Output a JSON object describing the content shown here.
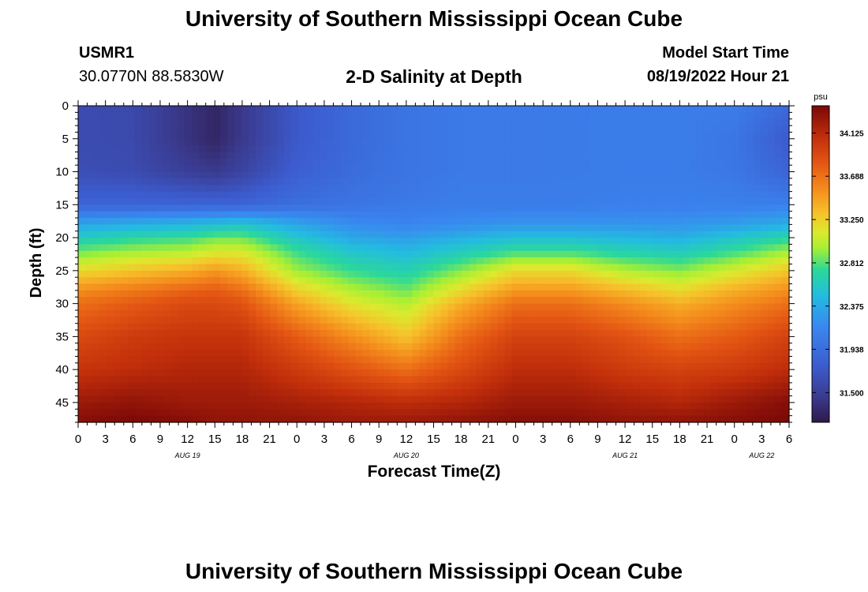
{
  "header": {
    "title": "University of Southern Mississippi Ocean Cube",
    "station_id": "USMR1",
    "station_coords": "30.0770N  88.5830W",
    "plot_title": "2-D Salinity at Depth",
    "start_label": "Model Start Time",
    "start_value": "08/19/2022 Hour 21"
  },
  "footer": {
    "title": "University of Southern Mississippi Ocean Cube"
  },
  "chart_data": {
    "type": "heatmap",
    "title": "2-D Salinity at Depth",
    "xlabel": "Forecast Time(Z)",
    "ylabel": "Depth (ft)",
    "x_range_hours": [
      0,
      78
    ],
    "y_range_ft": [
      0,
      48
    ],
    "x_ticks": [
      {
        "hour": 0,
        "label": "0"
      },
      {
        "hour": 3,
        "label": "3"
      },
      {
        "hour": 6,
        "label": "6"
      },
      {
        "hour": 9,
        "label": "9"
      },
      {
        "hour": 12,
        "label": "12"
      },
      {
        "hour": 15,
        "label": "15"
      },
      {
        "hour": 18,
        "label": "18"
      },
      {
        "hour": 21,
        "label": "21"
      },
      {
        "hour": 24,
        "label": "0"
      },
      {
        "hour": 27,
        "label": "3"
      },
      {
        "hour": 30,
        "label": "6"
      },
      {
        "hour": 33,
        "label": "9"
      },
      {
        "hour": 36,
        "label": "12"
      },
      {
        "hour": 39,
        "label": "15"
      },
      {
        "hour": 42,
        "label": "18"
      },
      {
        "hour": 45,
        "label": "21"
      },
      {
        "hour": 48,
        "label": "0"
      },
      {
        "hour": 51,
        "label": "3"
      },
      {
        "hour": 54,
        "label": "6"
      },
      {
        "hour": 57,
        "label": "9"
      },
      {
        "hour": 60,
        "label": "12"
      },
      {
        "hour": 63,
        "label": "15"
      },
      {
        "hour": 66,
        "label": "18"
      },
      {
        "hour": 69,
        "label": "21"
      },
      {
        "hour": 72,
        "label": "0"
      },
      {
        "hour": 75,
        "label": "3"
      },
      {
        "hour": 78,
        "label": "6"
      }
    ],
    "date_labels": [
      {
        "hour": 12,
        "label": "AUG 19"
      },
      {
        "hour": 36,
        "label": "AUG 20"
      },
      {
        "hour": 60,
        "label": "AUG 21"
      },
      {
        "hour": 75,
        "label": "AUG 22"
      }
    ],
    "y_ticks": [
      0,
      5,
      10,
      15,
      20,
      25,
      30,
      35,
      40,
      45
    ],
    "colorbar": {
      "unit": "psu",
      "min": 31.2,
      "max": 34.4,
      "ticks": [
        "34.125",
        "33.688",
        "33.250",
        "32.812",
        "32.375",
        "31.938",
        "31.500"
      ]
    },
    "depth_ft": [
      0,
      5,
      10,
      15,
      18,
      20,
      22,
      25,
      28,
      30,
      35,
      40,
      45,
      48
    ],
    "time_hours": [
      0,
      6,
      12,
      15,
      18,
      24,
      30,
      36,
      42,
      48,
      54,
      60,
      66,
      72,
      78
    ],
    "salinity_psu": [
      [
        31.62,
        31.6,
        31.4,
        31.3,
        31.45,
        31.75,
        31.9,
        32.0,
        32.05,
        32.05,
        32.06,
        32.07,
        32.07,
        32.07,
        31.9
      ],
      [
        31.62,
        31.6,
        31.4,
        31.3,
        31.45,
        31.75,
        31.9,
        32.0,
        32.05,
        32.05,
        32.06,
        32.07,
        32.07,
        32.02,
        31.75
      ],
      [
        31.65,
        31.62,
        31.5,
        31.45,
        31.55,
        31.8,
        31.92,
        32.0,
        32.05,
        32.05,
        32.06,
        32.07,
        32.07,
        32.03,
        31.85
      ],
      [
        31.85,
        31.85,
        31.85,
        31.85,
        31.85,
        31.95,
        32.0,
        32.05,
        32.08,
        32.08,
        32.08,
        32.1,
        32.1,
        32.1,
        32.1
      ],
      [
        32.35,
        32.4,
        32.45,
        32.5,
        32.55,
        32.35,
        32.2,
        32.15,
        32.2,
        32.25,
        32.25,
        32.25,
        32.25,
        32.3,
        32.4
      ],
      [
        32.6,
        32.7,
        32.75,
        32.85,
        32.85,
        32.55,
        32.35,
        32.3,
        32.4,
        32.5,
        32.5,
        32.45,
        32.4,
        32.55,
        32.7
      ],
      [
        32.85,
        32.95,
        33.0,
        33.1,
        33.1,
        32.75,
        32.55,
        32.45,
        32.6,
        32.75,
        32.75,
        32.65,
        32.6,
        32.75,
        32.95
      ],
      [
        33.2,
        33.3,
        33.4,
        33.5,
        33.4,
        32.95,
        32.75,
        32.65,
        32.9,
        33.2,
        33.2,
        33.0,
        32.9,
        33.1,
        33.3
      ],
      [
        33.55,
        33.65,
        33.75,
        33.8,
        33.7,
        33.25,
        33.0,
        32.85,
        33.2,
        33.5,
        33.5,
        33.35,
        33.2,
        33.4,
        33.55
      ],
      [
        33.7,
        33.8,
        33.9,
        33.9,
        33.85,
        33.45,
        33.15,
        33.0,
        33.4,
        33.7,
        33.7,
        33.55,
        33.4,
        33.55,
        33.7
      ],
      [
        33.9,
        34.0,
        34.05,
        34.05,
        34.05,
        33.8,
        33.55,
        33.3,
        33.7,
        33.95,
        33.95,
        33.85,
        33.7,
        33.8,
        33.95
      ],
      [
        34.05,
        34.1,
        34.15,
        34.15,
        34.15,
        34.0,
        33.85,
        33.7,
        33.9,
        34.1,
        34.1,
        34.0,
        33.95,
        34.0,
        34.1
      ],
      [
        34.25,
        34.3,
        34.25,
        34.25,
        34.25,
        34.2,
        34.15,
        34.1,
        34.15,
        34.25,
        34.25,
        34.2,
        34.15,
        34.25,
        34.35
      ],
      [
        34.35,
        34.4,
        34.35,
        34.3,
        34.3,
        34.3,
        34.25,
        34.25,
        34.3,
        34.35,
        34.35,
        34.3,
        34.3,
        34.35,
        34.4
      ]
    ]
  }
}
